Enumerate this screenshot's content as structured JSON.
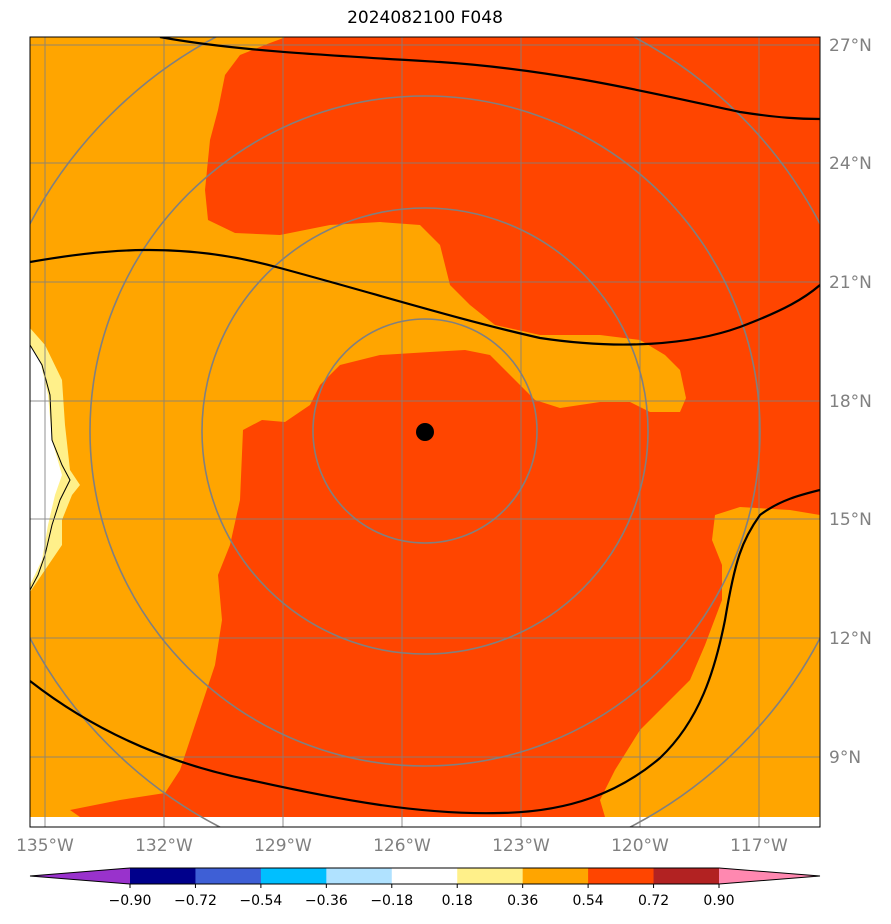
{
  "title": "2024082100 F048",
  "map": {
    "lon_range": [
      -135.3,
      -115.3
    ],
    "lat_range": [
      7.4,
      27.3
    ],
    "lon_ticks": [
      -135,
      -132,
      -129,
      -126,
      -123,
      -120,
      -117
    ],
    "lat_ticks": [
      9,
      12,
      15,
      18,
      21,
      24,
      27
    ],
    "lon_tick_labels": [
      "135°W",
      "132°W",
      "129°W",
      "126°W",
      "123°W",
      "120°W",
      "117°W"
    ],
    "lat_tick_labels": [
      "9°N",
      "12°N",
      "15°N",
      "18°N",
      "21°N",
      "24°N",
      "27°N"
    ],
    "gridlines": true,
    "storm_center": {
      "lon": -125.5,
      "lat": 17.2
    },
    "range_rings": "concentric circles around storm center",
    "tick_label_color": "#808080",
    "gridline_color": "#808080"
  },
  "colorbar": {
    "levels": [
      "−0.90",
      "−0.72",
      "−0.54",
      "−0.36",
      "−0.18",
      "0.18",
      "0.36",
      "0.54",
      "0.72",
      "0.90"
    ],
    "colors": [
      "#9932cc",
      "#00008b",
      "#3e5fd6",
      "#00bfff",
      "#b0e2ff",
      "#ffffff",
      "#fff08a",
      "#ffa500",
      "#ff4500",
      "#b22222",
      "#ff88b0"
    ],
    "extend": "both"
  }
}
